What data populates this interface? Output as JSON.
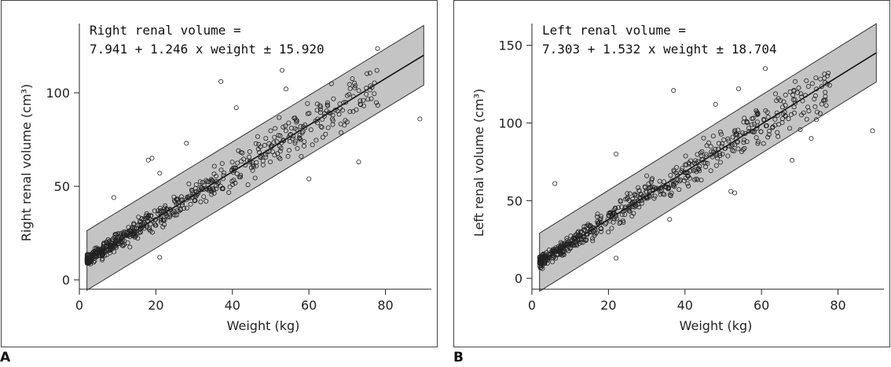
{
  "chart_data": [
    {
      "panel_label": "A",
      "type": "scatter",
      "title": "",
      "xlabel": "Weight (kg)",
      "ylabel": "Right renal volume (cm³)",
      "xlim": [
        0,
        92
      ],
      "ylim": [
        -5,
        137
      ],
      "x_ticks": [
        0,
        20,
        40,
        60,
        80
      ],
      "y_ticks": [
        0,
        50,
        100
      ],
      "annotation": [
        "Right renal volume =",
        "7.941 + 1.246 x weight ± 15.920"
      ],
      "regression": {
        "intercept": 7.941,
        "slope": 1.246,
        "band": 15.92,
        "x_range": [
          2,
          90
        ]
      },
      "band_fill": "#c4c4c4",
      "point_count": 620,
      "outliers": [
        [
          9,
          44
        ],
        [
          18,
          64
        ],
        [
          21,
          12
        ],
        [
          37,
          106
        ],
        [
          53,
          112
        ],
        [
          54,
          102
        ],
        [
          73,
          63
        ],
        [
          89,
          86
        ],
        [
          60,
          54
        ],
        [
          58,
          66
        ],
        [
          41,
          92
        ],
        [
          28,
          73
        ],
        [
          19,
          65
        ],
        [
          21,
          57
        ]
      ]
    },
    {
      "panel_label": "B",
      "type": "scatter",
      "title": "",
      "xlabel": "Weight (kg)",
      "ylabel": "Left renal volume (cm³)",
      "xlim": [
        0,
        92
      ],
      "ylim": [
        -7,
        164
      ],
      "x_ticks": [
        0,
        20,
        40,
        60,
        80
      ],
      "y_ticks": [
        0,
        50,
        100,
        150
      ],
      "annotation": [
        "Left renal volume =",
        "7.303 + 1.532 x weight ± 18.704"
      ],
      "regression": {
        "intercept": 7.303,
        "slope": 1.532,
        "band": 18.704,
        "x_range": [
          2,
          90
        ]
      },
      "band_fill": "#c4c4c4",
      "point_count": 620,
      "outliers": [
        [
          6,
          61
        ],
        [
          22,
          13
        ],
        [
          22,
          80
        ],
        [
          37,
          121
        ],
        [
          52,
          56
        ],
        [
          53,
          55
        ],
        [
          61,
          135
        ],
        [
          73,
          90
        ],
        [
          89,
          95
        ],
        [
          54,
          122
        ],
        [
          48,
          112
        ],
        [
          68,
          76
        ],
        [
          30,
          66
        ],
        [
          36,
          38
        ]
      ]
    }
  ]
}
